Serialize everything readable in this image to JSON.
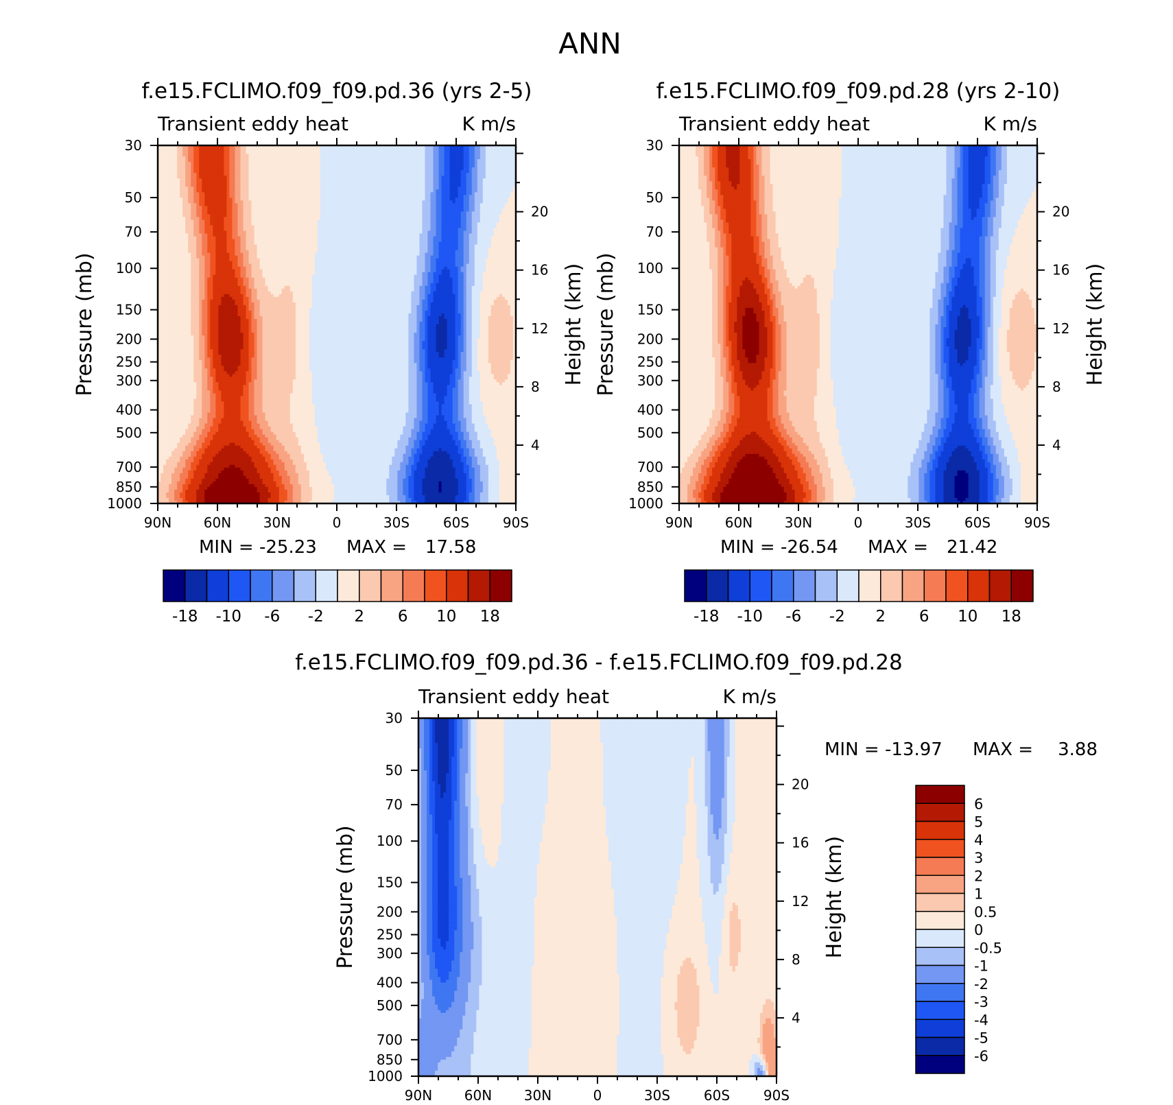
{
  "figure_title": "ANN",
  "chart_data": [
    {
      "type": "heatmap",
      "id": "p1",
      "title": "f.e15.FCLIMO.f09_f09.pd.36 (yrs 2-5)",
      "left_label": "Transient eddy heat",
      "right_label": "K m/s",
      "ylabel": "Pressure (mb)",
      "ylabel_right": "Height (km)",
      "x_ticks": [
        "90N",
        "60N",
        "30N",
        "0",
        "30S",
        "60S",
        "90S"
      ],
      "y_ticks": [
        "30",
        "50",
        "70",
        "100",
        "150",
        "200",
        "250",
        "300",
        "400",
        "500",
        "700",
        "850",
        "1000"
      ],
      "height_ticks": [
        "20",
        "16",
        "12",
        "8",
        "4"
      ],
      "min_label": "MIN =",
      "min": "-25.23",
      "max_label": "MAX =",
      "max": "17.58",
      "colorbar_labels": [
        "-18",
        "-10",
        "-6",
        "-2",
        "2",
        "6",
        "10",
        "18"
      ],
      "field": {
        "N1": 14,
        "N2": 13,
        "S1": 17.58,
        "S2": -25.23,
        "S3": 3.2,
        "S4": 2.6
      }
    },
    {
      "type": "heatmap",
      "id": "p2",
      "title": "f.e15.FCLIMO.f09_f09.pd.28 (yrs 2-10)",
      "left_label": "Transient eddy heat",
      "right_label": "K m/s",
      "ylabel": "Pressure (mb)",
      "ylabel_right": "Height (km)",
      "x_ticks": [
        "90N",
        "60N",
        "30N",
        "0",
        "30S",
        "60S",
        "90S"
      ],
      "y_ticks": [
        "30",
        "50",
        "70",
        "100",
        "150",
        "200",
        "250",
        "300",
        "400",
        "500",
        "700",
        "850",
        "1000"
      ],
      "height_ticks": [
        "20",
        "16",
        "12",
        "8",
        "4"
      ],
      "min_label": "MIN =",
      "min": "-26.54",
      "max_label": "MAX =",
      "max": "21.42",
      "colorbar_labels": [
        "-18",
        "-10",
        "-6",
        "-2",
        "2",
        "6",
        "10",
        "18"
      ],
      "field": {
        "N1": 16,
        "N2": 14,
        "S1": 21.42,
        "S2": -26.54,
        "S3": 3.6,
        "S4": 3.0
      }
    },
    {
      "type": "heatmap",
      "id": "p3",
      "title": "f.e15.FCLIMO.f09_f09.pd.36 - f.e15.FCLIMO.f09_f09.pd.28",
      "left_label": "Transient eddy heat",
      "right_label": "K m/s",
      "ylabel": "Pressure (mb)",
      "ylabel_right": "Height (km)",
      "x_ticks": [
        "90N",
        "60N",
        "30N",
        "0",
        "30S",
        "60S",
        "90S"
      ],
      "y_ticks": [
        "30",
        "50",
        "70",
        "100",
        "150",
        "200",
        "250",
        "300",
        "400",
        "500",
        "700",
        "850",
        "1000"
      ],
      "height_ticks": [
        "20",
        "16",
        "12",
        "8",
        "4"
      ],
      "min_label": "MIN =",
      "min": "-13.97",
      "max_label": "MAX =",
      "max": "3.88",
      "colorbar_labels": [
        "6",
        "5",
        "4",
        "3",
        "2",
        "1",
        "0.5",
        "0",
        "-0.5",
        "-1",
        "-2",
        "-3",
        "-4",
        "-5",
        "-6"
      ]
    }
  ],
  "colors": {
    "palette": [
      "#00007f",
      "#0a2aa8",
      "#0f3fd8",
      "#1f57f5",
      "#3f76f2",
      "#7397f2",
      "#a8c1f7",
      "#d9e8fb",
      "#fde9d9",
      "#fbc9b0",
      "#f8a482",
      "#f57b54",
      "#f0531f",
      "#d83309",
      "#b31903",
      "#8c0000"
    ]
  }
}
